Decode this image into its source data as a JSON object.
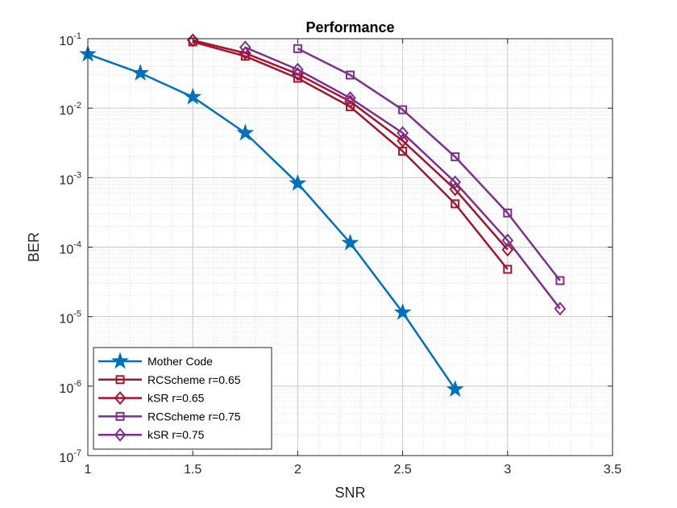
{
  "chart_data": {
    "type": "line",
    "title": "Performance",
    "xlabel": "SNR",
    "ylabel": "BER",
    "xlim": [
      1,
      3.5
    ],
    "ylim": [
      1e-07,
      0.1
    ],
    "yscale": "log",
    "x_ticks": [
      "1",
      "1.5",
      "2",
      "2.5",
      "3",
      "3.5"
    ],
    "y_ticks": [
      {
        "base": "10",
        "exp": "-7"
      },
      {
        "base": "10",
        "exp": "-6"
      },
      {
        "base": "10",
        "exp": "-5"
      },
      {
        "base": "10",
        "exp": "-4"
      },
      {
        "base": "10",
        "exp": "-3"
      },
      {
        "base": "10",
        "exp": "-2"
      },
      {
        "base": "10",
        "exp": "-1"
      }
    ],
    "grid": true,
    "legend_position": "bottom-left",
    "series": [
      {
        "name": "Mother Code",
        "color": "#0072BD",
        "marker": "star",
        "x": [
          1,
          1.25,
          1.5,
          1.75,
          2,
          2.25,
          2.5,
          2.75
        ],
        "y": [
          0.06,
          0.032,
          0.0145,
          0.0044,
          0.00083,
          0.000115,
          1.15e-05,
          9e-07
        ]
      },
      {
        "name": "RCScheme r=0.65",
        "color": "#A2142F",
        "marker": "square",
        "x": [
          1.5,
          1.75,
          2,
          2.25,
          2.5,
          2.75,
          3
        ],
        "y": [
          0.09,
          0.056,
          0.027,
          0.0105,
          0.0024,
          0.00042,
          4.8e-05
        ]
      },
      {
        "name": "kSR r=0.65",
        "color": "#A2142F",
        "marker": "diamond",
        "x": [
          1.5,
          1.75,
          2,
          2.25,
          2.5,
          2.75,
          3
        ],
        "y": [
          0.095,
          0.062,
          0.031,
          0.0125,
          0.0034,
          0.00068,
          9.2e-05
        ]
      },
      {
        "name": "RCScheme r=0.75",
        "color": "#7E2F8E",
        "marker": "square",
        "x": [
          2,
          2.25,
          2.5,
          2.75,
          3,
          3.25
        ],
        "y": [
          0.072,
          0.03,
          0.0095,
          0.002,
          0.00031,
          3.3e-05
        ]
      },
      {
        "name": "kSR r=0.75",
        "color": "#7E2F8E",
        "marker": "diamond",
        "x": [
          1.75,
          2,
          2.25,
          2.5,
          2.75,
          3,
          3.25
        ],
        "y": [
          0.075,
          0.036,
          0.014,
          0.0044,
          0.00086,
          0.000125,
          1.3e-05
        ]
      }
    ]
  }
}
